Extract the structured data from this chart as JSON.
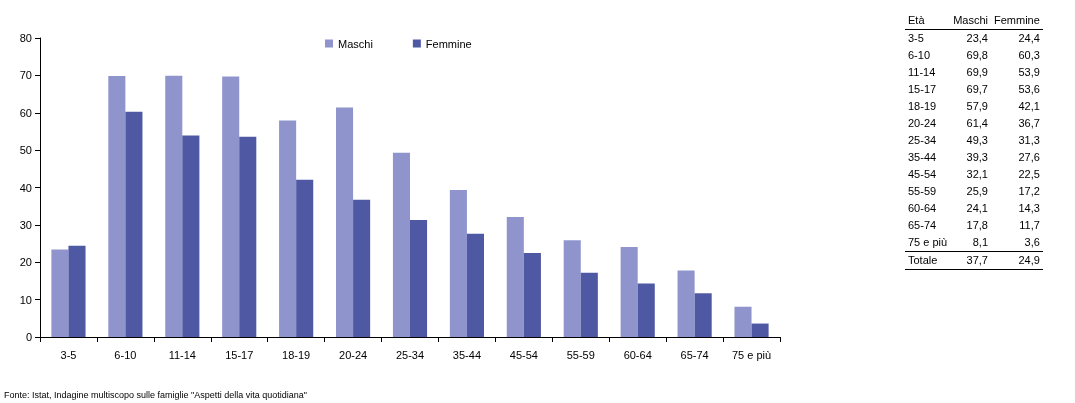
{
  "chart_data": [
    {
      "type": "bar",
      "categories": [
        "3-5",
        "6-10",
        "11-14",
        "15-17",
        "18-19",
        "20-24",
        "25-34",
        "35-44",
        "45-54",
        "55-59",
        "60-64",
        "65-74",
        "75 e più"
      ],
      "series": [
        {
          "name": "Maschi",
          "color": "#8f95cc",
          "values": [
            23.4,
            69.8,
            69.9,
            69.7,
            57.9,
            61.4,
            49.3,
            39.3,
            32.1,
            25.9,
            24.1,
            17.8,
            8.1
          ]
        },
        {
          "name": "Femmine",
          "color": "#4f58a3",
          "values": [
            24.4,
            60.3,
            53.9,
            53.6,
            42.1,
            36.7,
            31.3,
            27.6,
            22.5,
            17.2,
            14.3,
            11.7,
            3.6
          ]
        }
      ],
      "ylim": [
        0,
        80
      ],
      "yticks": [
        0,
        10,
        20,
        30,
        40,
        50,
        60,
        70,
        80
      ],
      "grid": false,
      "legend": "top",
      "annotations": [
        "Fonte: Istat, Indagine multiscopo sulle famiglie \"Aspetti della vita quotidiana\""
      ]
    },
    {
      "type": "other",
      "title": "Età",
      "categories": [
        "Maschi",
        "Femmine"
      ],
      "y_categories": [
        "3-5",
        "6-10",
        "11-14",
        "15-17",
        "18-19",
        "20-24",
        "25-34",
        "35-44",
        "45-54",
        "55-59",
        "60-64",
        "65-74",
        "75 e più",
        "Totale"
      ],
      "cell_labels": [
        [
          "23,4",
          "24,4"
        ],
        [
          "69,8",
          "60,3"
        ],
        [
          "69,9",
          "53,9"
        ],
        [
          "69,7",
          "53,6"
        ],
        [
          "57,9",
          "42,1"
        ],
        [
          "61,4",
          "36,7"
        ],
        [
          "49,3",
          "31,3"
        ],
        [
          "39,3",
          "27,6"
        ],
        [
          "32,1",
          "22,5"
        ],
        [
          "25,9",
          "17,2"
        ],
        [
          "24,1",
          "14,3"
        ],
        [
          "17,8",
          "11,7"
        ],
        [
          "8,1",
          "3,6"
        ],
        [
          "37,7",
          "24,9"
        ]
      ]
    }
  ]
}
